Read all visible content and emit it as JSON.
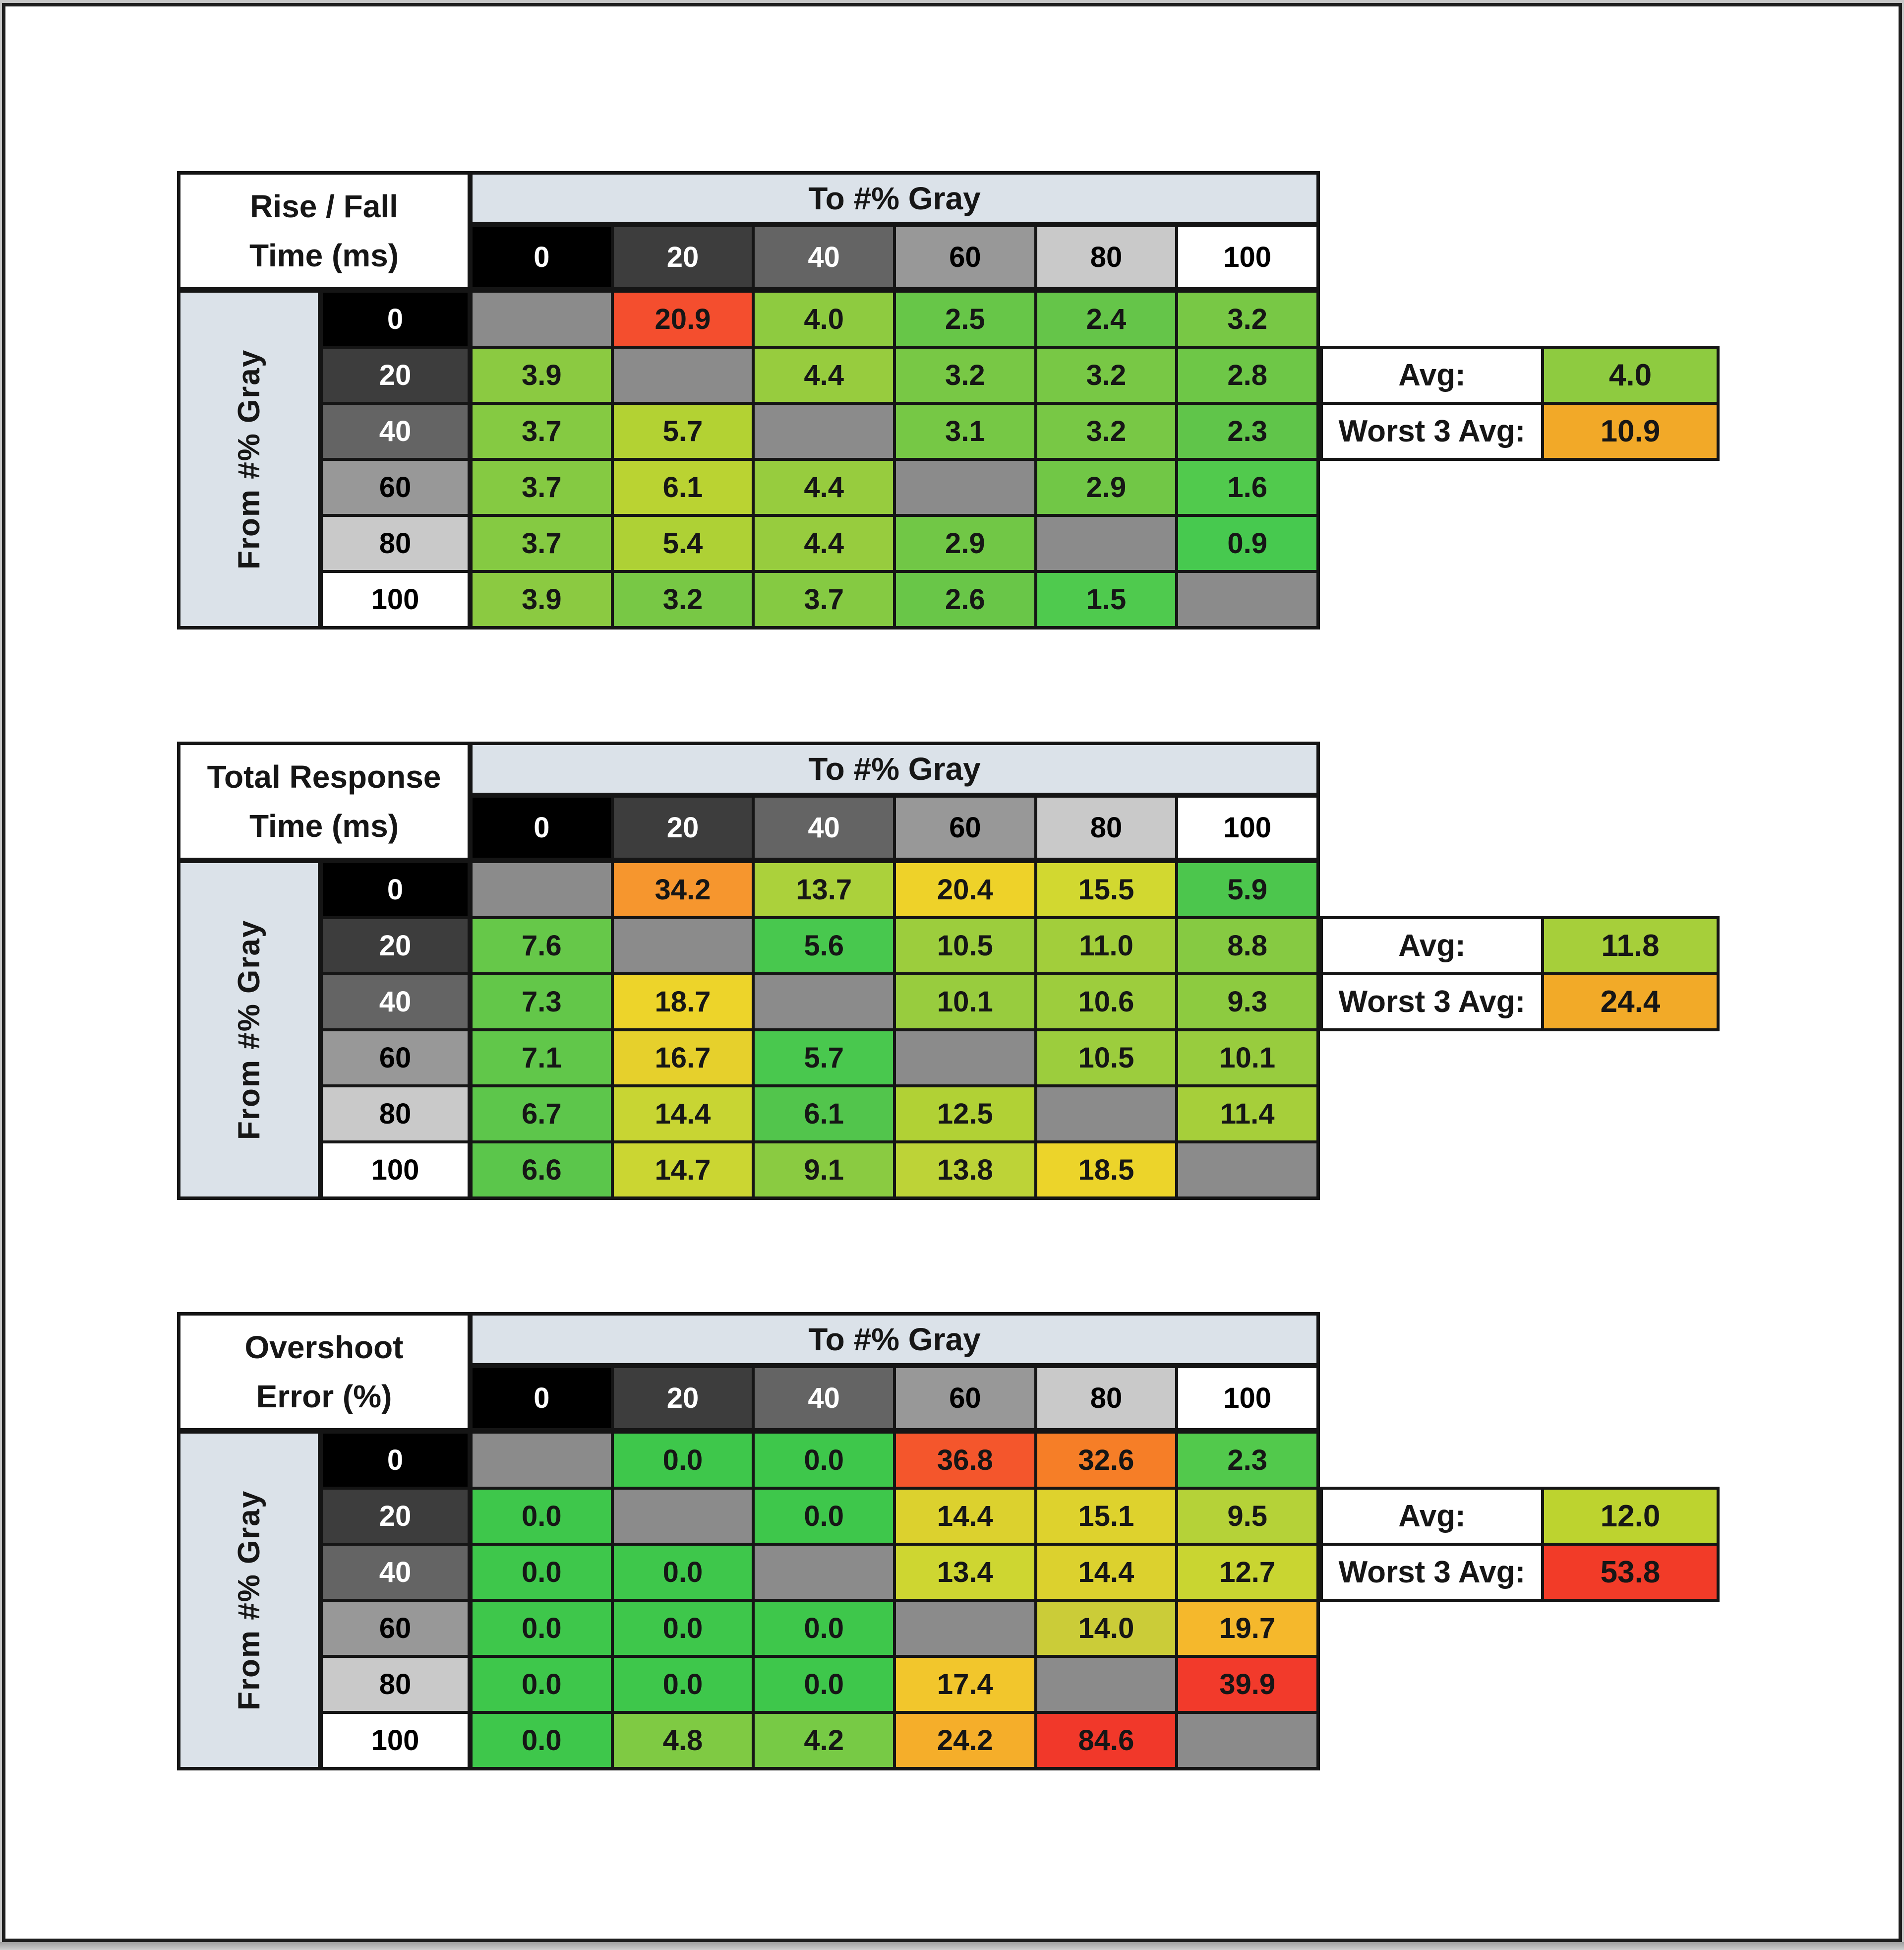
{
  "page": {
    "background": "#ffffff",
    "frame_border": "#1e1e1e",
    "grid_line": "#151515",
    "bottom_strip": "#b5b5b5"
  },
  "axis": {
    "col_title": "To #% Gray",
    "row_title": "From #% Gray",
    "band_bg": "#dbe2e9",
    "levels": [
      "0",
      "20",
      "40",
      "60",
      "80",
      "100"
    ],
    "level_colors": [
      {
        "bg": "#000000",
        "fg": "#ffffff"
      },
      {
        "bg": "#3d3d3d",
        "fg": "#ffffff"
      },
      {
        "bg": "#646464",
        "fg": "#ffffff"
      },
      {
        "bg": "#989898",
        "fg": "#000000"
      },
      {
        "bg": "#c9c9c9",
        "fg": "#000000"
      },
      {
        "bg": "#ffffff",
        "fg": "#000000"
      }
    ]
  },
  "diagonal_color": "#8b8b8b",
  "tables": [
    {
      "title_line1": "Rise / Fall",
      "title_line2": "Time (ms)",
      "cells": [
        [
          null,
          {
            "v": "20.9",
            "c": "#f44e2e"
          },
          {
            "v": "4.0",
            "c": "#8ecb40"
          },
          {
            "v": "2.5",
            "c": "#67c648"
          },
          {
            "v": "2.4",
            "c": "#65c549"
          },
          {
            "v": "3.2",
            "c": "#78c845"
          }
        ],
        [
          {
            "v": "3.9",
            "c": "#8bca41"
          },
          null,
          {
            "v": "4.4",
            "c": "#97cc3e"
          },
          {
            "v": "3.2",
            "c": "#78c845"
          },
          {
            "v": "3.2",
            "c": "#78c845"
          },
          {
            "v": "2.8",
            "c": "#6ec747"
          }
        ],
        [
          {
            "v": "3.7",
            "c": "#85ca42"
          },
          {
            "v": "5.7",
            "c": "#b3d233"
          },
          null,
          {
            "v": "3.1",
            "c": "#76c845"
          },
          {
            "v": "3.2",
            "c": "#78c845"
          },
          {
            "v": "2.3",
            "c": "#60c54a"
          }
        ],
        [
          {
            "v": "3.7",
            "c": "#85ca42"
          },
          {
            "v": "6.1",
            "c": "#bad332"
          },
          {
            "v": "4.4",
            "c": "#97cc3e"
          },
          null,
          {
            "v": "2.9",
            "c": "#71c746"
          },
          {
            "v": "1.6",
            "c": "#51ca4d"
          }
        ],
        [
          {
            "v": "3.7",
            "c": "#85ca42"
          },
          {
            "v": "5.4",
            "c": "#aed135"
          },
          {
            "v": "4.4",
            "c": "#97cc3e"
          },
          {
            "v": "2.9",
            "c": "#71c746"
          },
          null,
          {
            "v": "0.9",
            "c": "#47c94f"
          }
        ],
        [
          {
            "v": "3.9",
            "c": "#8bca41"
          },
          {
            "v": "3.2",
            "c": "#78c845"
          },
          {
            "v": "3.7",
            "c": "#85ca42"
          },
          {
            "v": "2.6",
            "c": "#69c648"
          },
          {
            "v": "1.5",
            "c": "#4fca4e"
          },
          null
        ]
      ],
      "summary": {
        "avg_label": "Avg:",
        "avg_value": "4.0",
        "avg_color": "#8ecb40",
        "worst_label": "Worst 3 Avg:",
        "worst_value": "10.9",
        "worst_color": "#f2a928"
      }
    },
    {
      "title_line1": "Total Response",
      "title_line2": "Time (ms)",
      "cells": [
        [
          null,
          {
            "v": "34.2",
            "c": "#f6962e"
          },
          {
            "v": "13.7",
            "c": "#abd13b"
          },
          {
            "v": "20.4",
            "c": "#eed229"
          },
          {
            "v": "15.5",
            "c": "#d2d830"
          },
          {
            "v": "5.9",
            "c": "#4cc64d"
          }
        ],
        [
          {
            "v": "7.6",
            "c": "#66c849"
          },
          null,
          {
            "v": "5.6",
            "c": "#48c84e"
          },
          {
            "v": "10.5",
            "c": "#9ccd3d"
          },
          {
            "v": "11.0",
            "c": "#a2ce3b"
          },
          {
            "v": "8.8",
            "c": "#86ca42"
          }
        ],
        [
          {
            "v": "7.3",
            "c": "#63c749"
          },
          {
            "v": "18.7",
            "c": "#edd42a"
          },
          null,
          {
            "v": "10.1",
            "c": "#98cc3e"
          },
          {
            "v": "10.6",
            "c": "#9dcd3d"
          },
          {
            "v": "9.3",
            "c": "#8dcb40"
          }
        ],
        [
          {
            "v": "7.1",
            "c": "#61c74a"
          },
          {
            "v": "16.7",
            "c": "#e6d02c"
          },
          {
            "v": "5.7",
            "c": "#49c84e"
          },
          null,
          {
            "v": "10.5",
            "c": "#9ccd3d"
          },
          {
            "v": "10.1",
            "c": "#98cc3e"
          }
        ],
        [
          {
            "v": "6.7",
            "c": "#5dc64b"
          },
          {
            "v": "14.4",
            "c": "#c8d533"
          },
          {
            "v": "6.1",
            "c": "#52c54c"
          },
          {
            "v": "12.5",
            "c": "#b1d135"
          },
          null,
          {
            "v": "11.4",
            "c": "#a6cf3a"
          }
        ],
        [
          {
            "v": "6.6",
            "c": "#5bc64b"
          },
          {
            "v": "14.7",
            "c": "#cbd632"
          },
          {
            "v": "9.1",
            "c": "#8acb41"
          },
          {
            "v": "13.8",
            "c": "#bdd337"
          },
          {
            "v": "18.5",
            "c": "#ecd42a"
          },
          null
        ]
      ],
      "summary": {
        "avg_label": "Avg:",
        "avg_value": "11.8",
        "avg_color": "#a6cf3a",
        "worst_label": "Worst 3 Avg:",
        "worst_value": "24.4",
        "worst_color": "#f2aa28"
      }
    },
    {
      "title_line1": "Overshoot",
      "title_line2": "Error (%)",
      "cells": [
        [
          null,
          {
            "v": "0.0",
            "c": "#3ec74b"
          },
          {
            "v": "0.0",
            "c": "#3ec74b"
          },
          {
            "v": "36.8",
            "c": "#f4562c"
          },
          {
            "v": "32.6",
            "c": "#f67e27"
          },
          {
            "v": "2.3",
            "c": "#52c94c"
          }
        ],
        [
          {
            "v": "0.0",
            "c": "#3ec74b"
          },
          null,
          {
            "v": "0.0",
            "c": "#3ec74b"
          },
          {
            "v": "14.4",
            "c": "#dcd12e"
          },
          {
            "v": "15.1",
            "c": "#ded22d"
          },
          {
            "v": "9.5",
            "c": "#b5d238"
          }
        ],
        [
          {
            "v": "0.0",
            "c": "#3ec74b"
          },
          {
            "v": "0.0",
            "c": "#3ec74b"
          },
          null,
          {
            "v": "13.4",
            "c": "#ced631"
          },
          {
            "v": "14.4",
            "c": "#dcd12e"
          },
          {
            "v": "12.7",
            "c": "#c9d531"
          }
        ],
        [
          {
            "v": "0.0",
            "c": "#3ec74b"
          },
          {
            "v": "0.0",
            "c": "#3ec74b"
          },
          {
            "v": "0.0",
            "c": "#3ec74b"
          },
          null,
          {
            "v": "14.0",
            "c": "#cbcc38"
          },
          {
            "v": "19.7",
            "c": "#f5b82c"
          }
        ],
        [
          {
            "v": "0.0",
            "c": "#3ec74b"
          },
          {
            "v": "0.0",
            "c": "#3ec74b"
          },
          {
            "v": "0.0",
            "c": "#3ec74b"
          },
          {
            "v": "17.4",
            "c": "#f2c62c"
          },
          null,
          {
            "v": "39.9",
            "c": "#f23a2b"
          }
        ],
        [
          {
            "v": "0.0",
            "c": "#3ec74b"
          },
          {
            "v": "4.8",
            "c": "#7fca43"
          },
          {
            "v": "4.2",
            "c": "#77ca45"
          },
          {
            "v": "24.2",
            "c": "#f5ae2a"
          },
          {
            "v": "84.6",
            "c": "#f1382a"
          },
          null
        ]
      ],
      "summary": {
        "avg_label": "Avg:",
        "avg_value": "12.0",
        "avg_color": "#bdd32f",
        "worst_label": "Worst 3 Avg:",
        "worst_value": "53.8",
        "worst_color": "#f23b28"
      }
    }
  ]
}
